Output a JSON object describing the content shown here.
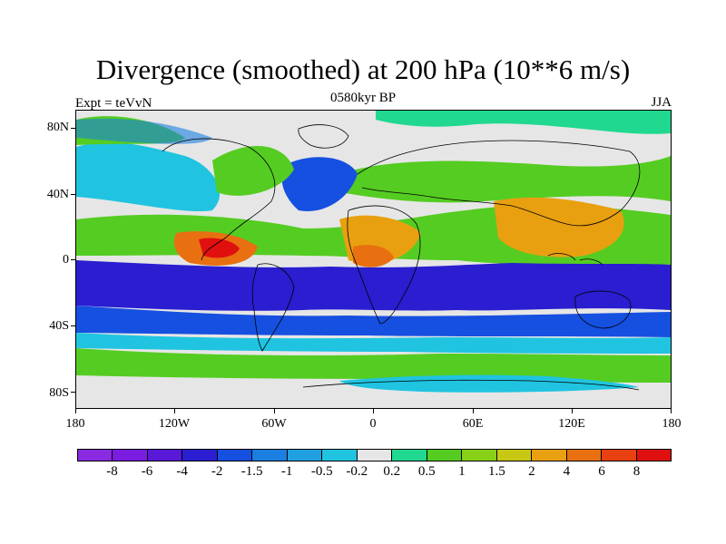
{
  "title": "Divergence (smoothed) at 200 hPa (10**6 m/s)",
  "subtitle_left": "Expt = teVvN",
  "subtitle_center": "0580kyr BP",
  "subtitle_right": "JJA",
  "lat_labels": [
    "80N",
    "40N",
    "0",
    "40S",
    "80S"
  ],
  "lon_labels": [
    "180",
    "120W",
    "60W",
    "0",
    "60E",
    "120E",
    "180"
  ],
  "colorbar": {
    "colors": [
      "#8a2be2",
      "#7a1de0",
      "#5a18d8",
      "#2a1ed0",
      "#1650e0",
      "#1a7fe0",
      "#20a0e0",
      "#20c4e0",
      "#e6e6e6",
      "#20d890",
      "#55cc22",
      "#88d018",
      "#c8c814",
      "#e8a010",
      "#e87010",
      "#e84010",
      "#e01010"
    ],
    "labels": [
      "-8",
      "-6",
      "-4",
      "-2",
      "-1.5",
      "-1",
      "-0.5",
      "-0.2",
      "0.2",
      "0.5",
      "1",
      "1.5",
      "2",
      "4",
      "6",
      "8"
    ]
  },
  "map_colors": {
    "background": "#e6e6e6",
    "strong_neg": "#2222cc",
    "neg": "#1e5ee0",
    "weak_neg": "#1ca6e0",
    "cyan": "#22c8e0",
    "green": "#22d680",
    "lime": "#5ccc22",
    "yellow": "#c8c814",
    "orange": "#e8a010",
    "dark_orange": "#e87010",
    "red": "#e02010",
    "coast": "#000000"
  }
}
